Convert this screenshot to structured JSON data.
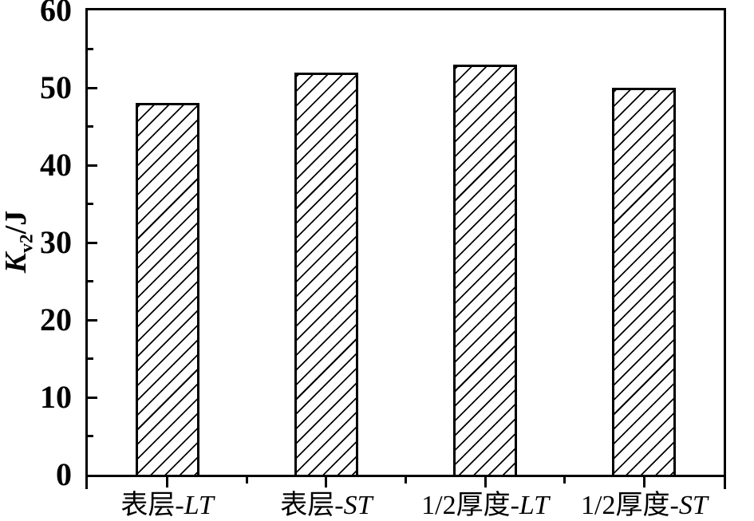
{
  "chart_data": {
    "type": "bar",
    "title": "",
    "xlabel": "",
    "ylabel": "Kv2/J",
    "ylabel_parts": {
      "base": "K",
      "sub": "v2",
      "suffix": "/J"
    },
    "categories": [
      "表层-LT",
      "表层-ST",
      "1/2厚度-LT",
      "1/2厚度-ST"
    ],
    "values": [
      48,
      52,
      53,
      50
    ],
    "ylim": [
      0,
      60
    ],
    "y_major_ticks": [
      0,
      10,
      20,
      30,
      40,
      50,
      60
    ],
    "y_minor_step": 5,
    "grid": false,
    "legend": null,
    "bar_style": {
      "fill_pattern": "diagonal-hatch-forward-slash",
      "outline_color": "#000000",
      "hatch_color": "#000000"
    },
    "frame": "full-box",
    "colors": {
      "axis": "#000000",
      "text": "#000000",
      "background": "#ffffff"
    }
  }
}
